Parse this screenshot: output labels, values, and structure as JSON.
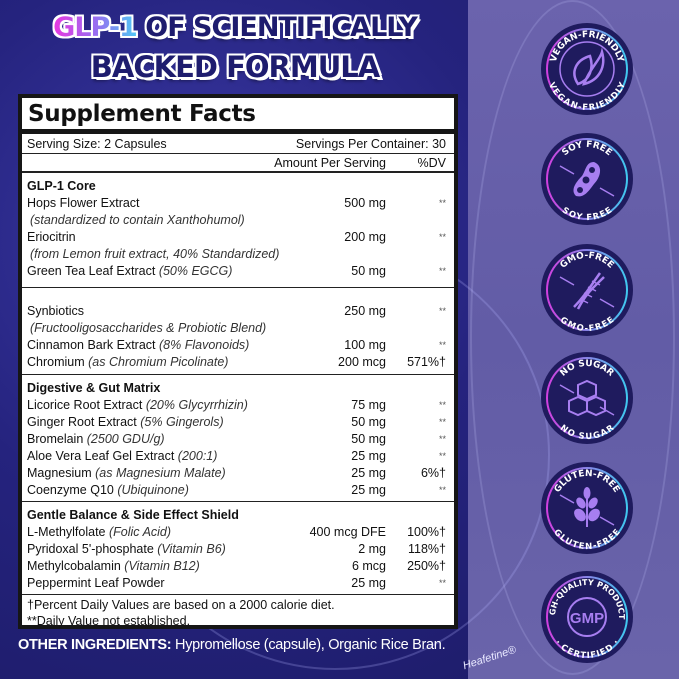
{
  "headline": {
    "accent": "GLP-1",
    "line1_rest": "OF SCIENTIFICALLY",
    "line2": "BACKED FORMULA"
  },
  "label": {
    "title": "Supplement Facts",
    "serving_size": "Serving Size: 2 Capsules",
    "servings_per_container": "Servings Per Container: 30",
    "amount_header": "Amount Per Serving",
    "dv_header": "%DV",
    "sections": [
      {
        "title": "GLP-1 Core",
        "items": [
          {
            "name": "Hops Flower Extract",
            "note": "",
            "sub": "(standardized to contain Xanthohumol)",
            "amount": "500 mg",
            "dv": "**"
          },
          {
            "name": "Eriocitrin",
            "note": "",
            "sub": "(from Lemon fruit extract, 40% Standardized)",
            "amount": "200 mg",
            "dv": "**"
          },
          {
            "name": "Green Tea Leaf Extract",
            "note": "(50% EGCG)",
            "amount": "50 mg",
            "dv": "**"
          }
        ]
      },
      {
        "title": "",
        "items": [
          {
            "name": "Synbiotics",
            "note": "",
            "sub": "(Fructooligosaccharides & Probiotic Blend)",
            "amount": "250 mg",
            "dv": "**"
          },
          {
            "name": "Cinnamon Bark Extract",
            "note": "(8% Flavonoids)",
            "amount": "100 mg",
            "dv": "**"
          },
          {
            "name": "Chromium",
            "note": "(as Chromium Picolinate)",
            "amount": "200 mcg",
            "dv": "571%†"
          }
        ]
      },
      {
        "title": "Digestive & Gut Matrix",
        "items": [
          {
            "name": "Licorice Root Extract",
            "note": "(20% Glycyrrhizin)",
            "amount": "75 mg",
            "dv": "**"
          },
          {
            "name": "Ginger Root Extract",
            "note": "(5% Gingerols)",
            "amount": "50 mg",
            "dv": "**"
          },
          {
            "name": "Bromelain",
            "note": "(2500 GDU/g)",
            "amount": "50 mg",
            "dv": "**"
          },
          {
            "name": "Aloe Vera Leaf Gel Extract",
            "note": "(200:1)",
            "amount": "25 mg",
            "dv": "**"
          },
          {
            "name": "Magnesium",
            "note": "(as Magnesium Malate)",
            "amount": "25 mg",
            "dv": "6%†"
          },
          {
            "name": "Coenzyme Q10",
            "note": "(Ubiquinone)",
            "amount": "25 mg",
            "dv": "**"
          }
        ]
      },
      {
        "title": "Gentle Balance & Side Effect Shield",
        "items": [
          {
            "name": "L-Methylfolate",
            "note": "(Folic Acid)",
            "amount": "400 mcg DFE",
            "dv": "100%†"
          },
          {
            "name": "Pyridoxal 5'-phosphate",
            "note": "(Vitamin B6)",
            "amount": "2 mg",
            "dv": "118%†"
          },
          {
            "name": "Methylcobalamin",
            "note": "(Vitamin B12)",
            "amount": "6 mcg",
            "dv": "250%†"
          },
          {
            "name": "Peppermint Leaf Powder",
            "note": "",
            "amount": "25 mg",
            "dv": "**"
          }
        ]
      }
    ],
    "footnotes": [
      "†Percent Daily Values are based on a 2000 calorie diet.",
      "**Daily Value not established."
    ]
  },
  "other_ingredients": {
    "label": "OTHER INGREDIENTS:",
    "value": " Hypromellose (capsule), Organic Rice Bran."
  },
  "brand": "Heafetine®",
  "badges": [
    {
      "icon": "leaf-icon",
      "top": "VEGAN-FRIENDLY",
      "bottom": "VEGAN-FRIENDLY"
    },
    {
      "icon": "soybean-icon",
      "top": "SOY FREE",
      "bottom": "SOY FREE"
    },
    {
      "icon": "dna-icon",
      "top": "GMO-FREE",
      "bottom": "GMO-FREE"
    },
    {
      "icon": "sugar-cubes-icon",
      "top": "NO SUGAR",
      "bottom": "NO SUGAR"
    },
    {
      "icon": "wheat-icon",
      "top": "GLUTEN-FREE",
      "bottom": "GLUTEN-FREE"
    },
    {
      "icon": "gmp-seal-icon",
      "top": "HIGH-QUALITY PRODUCTS",
      "bottom": "· CERTIFIED ·",
      "center": "GMP"
    }
  ],
  "colors": {
    "badge_fill": "#1f1b5e",
    "badge_ring_start": "#d040e0",
    "badge_ring_end": "#40c8f0",
    "icon": "#a77ef0",
    "background": "#25237e",
    "panel": "#6660a8"
  }
}
